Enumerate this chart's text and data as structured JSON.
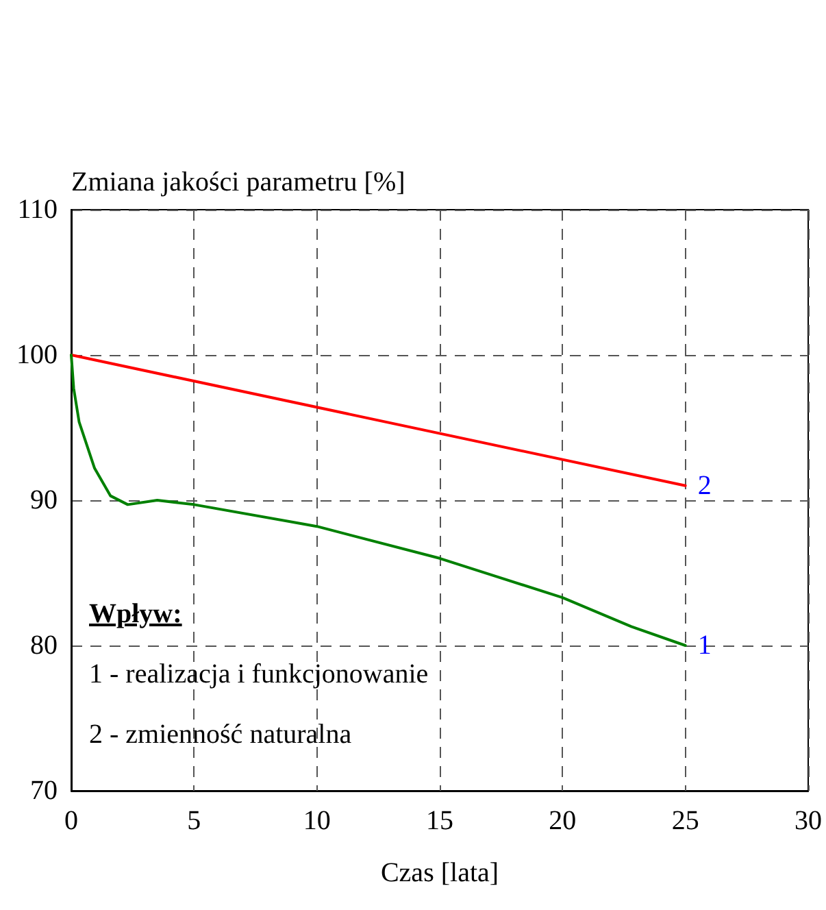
{
  "chart_data": {
    "type": "line",
    "ylabel": "Zmiana jakości parametru [%]",
    "xlabel": "Czas [lata]",
    "xlim": [
      0,
      30
    ],
    "xticks": [
      0,
      5,
      10,
      15,
      20,
      25,
      30
    ],
    "ylim": [
      70,
      110
    ],
    "yticks": [
      70,
      80,
      90,
      100,
      110
    ],
    "grid": true,
    "annotations": [
      "Wpływ:",
      "1 - realizacja i funkcjonowanie",
      "2 - zmienność naturalna",
      {
        "text": "1",
        "x": 25,
        "y": 80
      },
      {
        "text": "2",
        "x": 25,
        "y": 91
      }
    ],
    "series": [
      {
        "color": "#ff0000",
        "x": [
          0,
          25
        ],
        "values": [
          100,
          91
        ]
      },
      {
        "color": "#008000",
        "x": [
          0,
          0.1,
          0.32,
          0.95,
          1.6,
          2.3,
          3.5,
          5,
          10,
          15,
          17.4,
          20,
          22.8,
          25
        ],
        "values": [
          100,
          97.7,
          95.4,
          92.2,
          90.3,
          89.7,
          90.0,
          89.7,
          88.2,
          86.0,
          84.7,
          83.3,
          81.3,
          80
        ]
      }
    ]
  }
}
